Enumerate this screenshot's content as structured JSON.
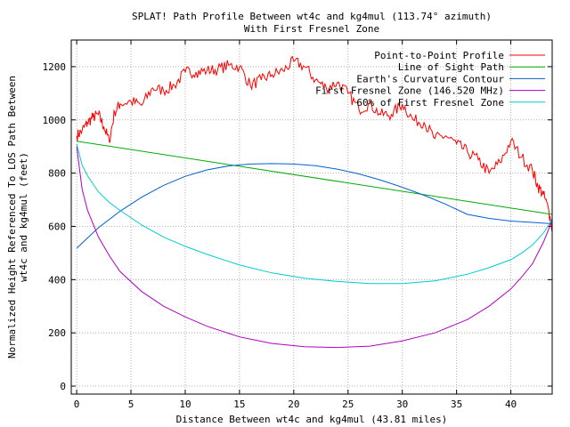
{
  "chart_data": {
    "type": "line",
    "title": "SPLAT! Path Profile Between wt4c and kg4mul (113.74° azimuth)",
    "subtitle": "With First Fresnel Zone",
    "xlabel": "Distance Between wt4c and kg4mul (43.81 miles)",
    "ylabel_line1": "Normalized Height Referenced To LOS Path Between",
    "ylabel_line2": "wt4c and kg4mul (feet)",
    "xlim": [
      -0.5,
      43.81
    ],
    "ylim": [
      -30,
      1300
    ],
    "xticks": [
      0,
      5,
      10,
      15,
      20,
      25,
      30,
      35,
      40
    ],
    "yticks": [
      0,
      200,
      400,
      600,
      800,
      1000,
      1200
    ],
    "grid": true,
    "legend_position": "top-right",
    "series": [
      {
        "name": "Point-to-Point Profile",
        "color": "#ff0000",
        "x": [
          0,
          0.5,
          1,
          1.5,
          2,
          2.5,
          3,
          3.5,
          4,
          5,
          6,
          7,
          8,
          9,
          10,
          11,
          12,
          13,
          14,
          15,
          16,
          17,
          18,
          19,
          20,
          21,
          22,
          23,
          24,
          25,
          26,
          27,
          28,
          29,
          30,
          31,
          32,
          33,
          34,
          35,
          36,
          37,
          38,
          39,
          40,
          41,
          42,
          42.5,
          43,
          43.5,
          43.81
        ],
        "y": [
          940,
          960,
          990,
          1010,
          1020,
          975,
          920,
          1030,
          1060,
          1070,
          1055,
          1120,
          1110,
          1130,
          1180,
          1180,
          1185,
          1190,
          1205,
          1200,
          1130,
          1150,
          1170,
          1185,
          1220,
          1200,
          1150,
          1120,
          1140,
          1100,
          1040,
          1060,
          1020,
          1020,
          1060,
          1000,
          990,
          930,
          940,
          910,
          880,
          850,
          800,
          840,
          920,
          860,
          810,
          750,
          720,
          660,
          590
        ]
      },
      {
        "name": "Line of Sight Path",
        "color": "#00aa00",
        "x": [
          0,
          43.81
        ],
        "y": [
          920,
          645
        ]
      },
      {
        "name": "Earth's Curvature Contour",
        "color": "#0060d0",
        "x": [
          0,
          2,
          4,
          6,
          8,
          10,
          12,
          14,
          16,
          18,
          20,
          22,
          24,
          26,
          28,
          30,
          32,
          34,
          36,
          38,
          40,
          42,
          43.81
        ],
        "y": [
          518,
          595,
          657,
          710,
          754,
          788,
          812,
          827,
          834,
          836,
          834,
          828,
          815,
          797,
          774,
          747,
          717,
          683,
          645,
          630,
          620,
          615,
          610
        ]
      },
      {
        "name": "First Fresnel Zone (146.520 MHz)",
        "color": "#b000c0",
        "x": [
          0,
          0.5,
          1,
          2,
          3,
          4,
          6,
          8,
          10,
          12,
          15,
          18,
          21,
          24,
          27,
          30,
          33,
          36,
          38,
          40,
          41,
          42,
          43,
          43.5,
          43.81
        ],
        "y": [
          900,
          740,
          660,
          560,
          490,
          430,
          355,
          300,
          260,
          225,
          185,
          160,
          148,
          145,
          150,
          170,
          200,
          250,
          300,
          365,
          410,
          460,
          540,
          590,
          630
        ]
      },
      {
        "name": "60% of First Fresnel Zone",
        "color": "#00cccc",
        "x": [
          0,
          0.5,
          1,
          2,
          3,
          4,
          6,
          8,
          10,
          12,
          15,
          18,
          21,
          24,
          27,
          30,
          33,
          36,
          38,
          40,
          41,
          42,
          43,
          43.5,
          43.81
        ],
        "y": [
          910,
          830,
          790,
          730,
          690,
          660,
          605,
          560,
          525,
          495,
          455,
          425,
          405,
          393,
          385,
          385,
          395,
          420,
          445,
          475,
          500,
          530,
          575,
          605,
          630
        ]
      }
    ]
  }
}
